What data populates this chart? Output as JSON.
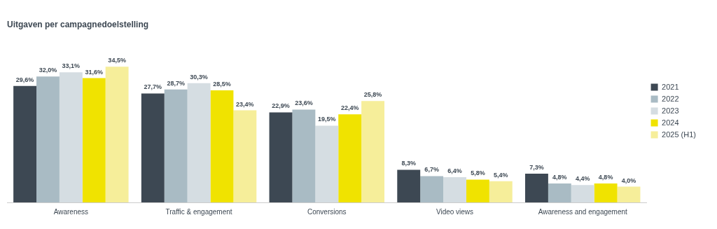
{
  "chart_data": {
    "type": "bar",
    "title": "Uitgaven per campagnedoelstelling",
    "categories": [
      "Awareness",
      "Traffic & engagement",
      "Conversions",
      "Video views",
      "Awareness and engagement"
    ],
    "series": [
      {
        "name": "2021",
        "color": "#3d4853",
        "values": [
          29.6,
          27.7,
          22.9,
          8.3,
          7.3
        ],
        "value_labels": [
          "29,6%",
          "27,7%",
          "22,9%",
          "8,3%",
          "7,3%"
        ]
      },
      {
        "name": "2022",
        "color": "#a9bbc4",
        "values": [
          32.0,
          28.7,
          23.6,
          6.7,
          4.8
        ],
        "value_labels": [
          "32,0%",
          "28,7%",
          "23,6%",
          "6,7%",
          "4,8%"
        ]
      },
      {
        "name": "2023",
        "color": "#d5dde2",
        "values": [
          33.1,
          30.3,
          19.5,
          6.4,
          4.4
        ],
        "value_labels": [
          "33,1%",
          "30,3%",
          "19,5%",
          "6,4%",
          "4,4%"
        ]
      },
      {
        "name": "2024",
        "color": "#f0e300",
        "values": [
          31.6,
          28.5,
          22.4,
          5.8,
          4.8
        ],
        "value_labels": [
          "31,6%",
          "28,5%",
          "22,4%",
          "5,8%",
          "4,8%"
        ]
      },
      {
        "name": "2025 (H1)",
        "color": "#f6ee9a",
        "values": [
          34.5,
          23.4,
          25.8,
          5.4,
          4.0
        ],
        "value_labels": [
          "34,5%",
          "23,4%",
          "25,8%",
          "5,4%",
          "4,0%"
        ]
      }
    ],
    "legend": "right",
    "grid": false
  }
}
